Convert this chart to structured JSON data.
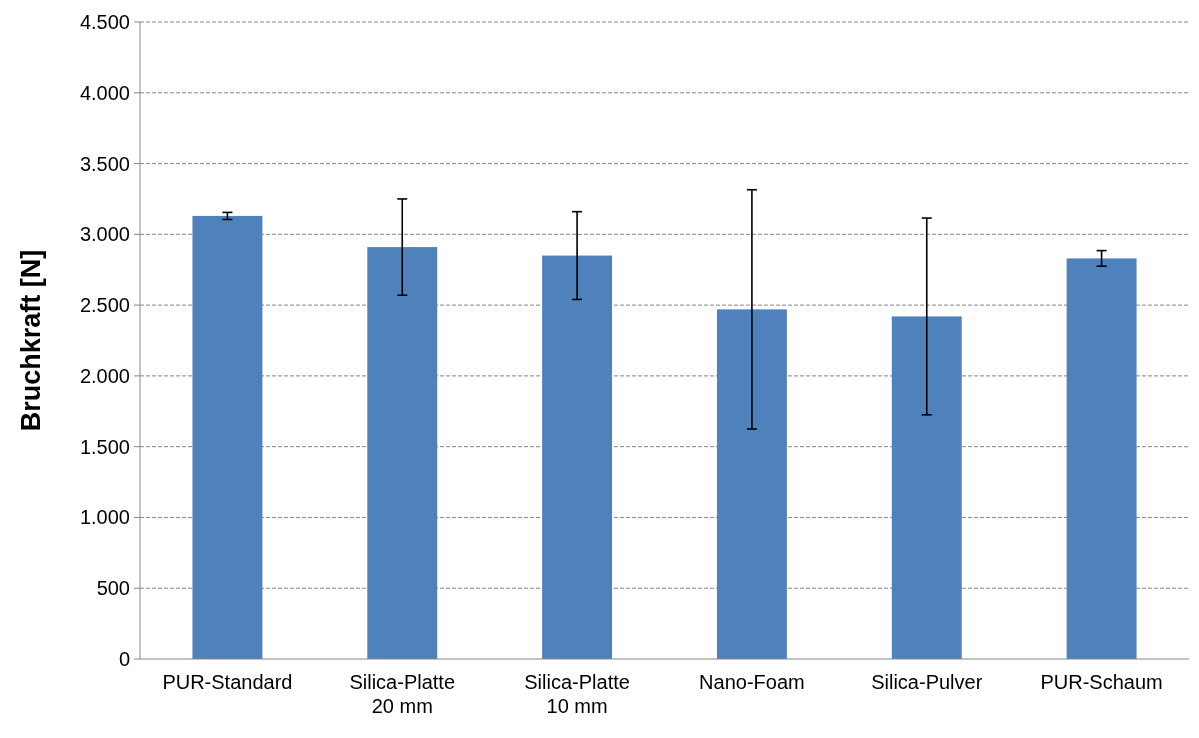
{
  "chart_data": {
    "type": "bar",
    "ylabel": "Bruchkraft [N]",
    "categories": [
      "PUR-Standard",
      "Silica-Platte\n20 mm",
      "Silica-Platte\n10 mm",
      "Nano-Foam",
      "Silica-Pulver",
      "PUR-Schaum"
    ],
    "values": [
      3130,
      2910,
      2850,
      2470,
      2420,
      2830
    ],
    "errors": [
      25,
      340,
      310,
      845,
      695,
      55
    ],
    "color": "#4f81bd",
    "ylim": [
      0,
      4500
    ],
    "yticks": [
      0,
      500,
      {
        "value": 1000,
        "label": "1.000"
      },
      {
        "value": 1500,
        "label": "1.500"
      },
      {
        "value": 2000,
        "label": "2.000"
      },
      {
        "value": 2500,
        "label": "2.500"
      },
      {
        "value": 3000,
        "label": "3.000"
      },
      {
        "value": 3500,
        "label": "3.500"
      },
      {
        "value": 4000,
        "label": "4.000"
      },
      {
        "value": 4500,
        "label": "4.500"
      }
    ],
    "grid": "y"
  }
}
